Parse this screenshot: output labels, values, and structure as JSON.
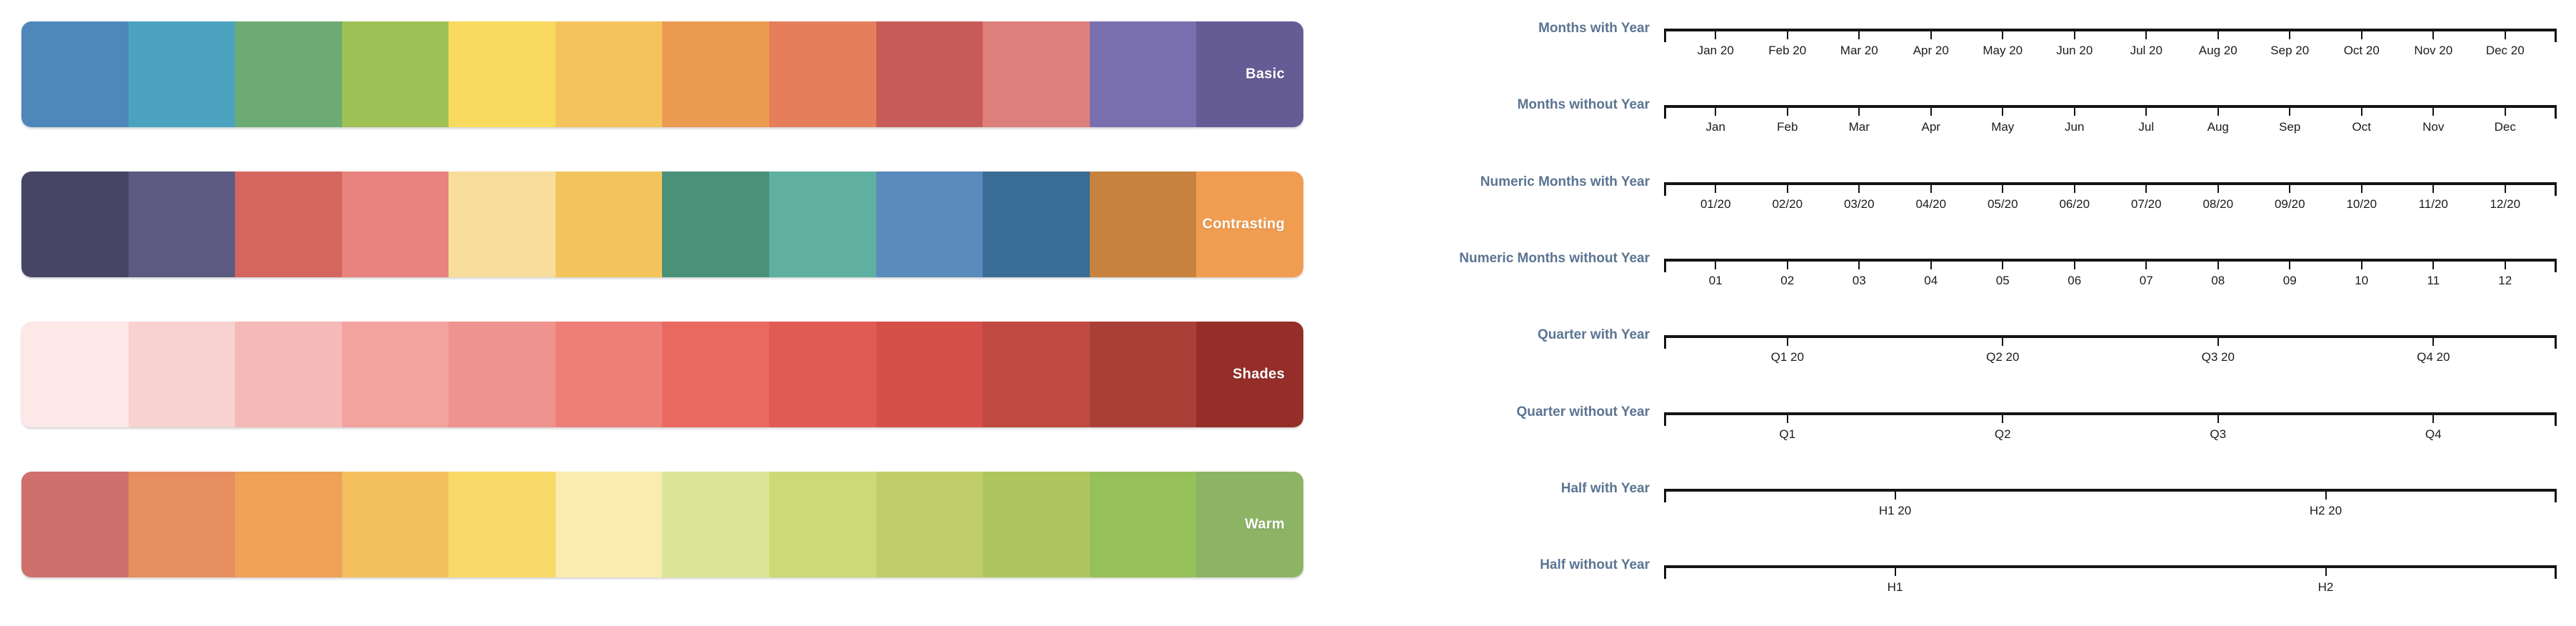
{
  "palettes": [
    {
      "name": "Basic",
      "colors": [
        "#4e87b9",
        "#4ba3c0",
        "#6cab73",
        "#a0c156",
        "#f8da5e",
        "#f5c35c",
        "#eb9c50",
        "#e67e5c",
        "#c65b58",
        "#dd807c",
        "#7a6fae",
        "#655c96"
      ]
    },
    {
      "name": "Contrasting",
      "colors": [
        "#474566",
        "#5c5a82",
        "#d5655f",
        "#e8837f",
        "#f8dd9c",
        "#f3c45c",
        "#4a9179",
        "#5fb0a0",
        "#5b8abc",
        "#3a6d96",
        "#c8823f",
        "#f09d51"
      ]
    },
    {
      "name": "Shades",
      "colors": [
        "#fce8e7",
        "#f7d2d0",
        "#f5bab7",
        "#f2a39f",
        "#ef938e",
        "#ed7f78",
        "#ea6a61",
        "#e05c53",
        "#d55049",
        "#c04a42",
        "#aa3f38",
        "#952e29"
      ]
    },
    {
      "name": "Warm",
      "colors": [
        "#cf706c",
        "#e68e5e",
        "#eea157",
        "#f4c05e",
        "#f9d968",
        "#f9ecae",
        "#dde698",
        "#cdd977",
        "#bfce69",
        "#adc75e",
        "#96c059",
        "#8cb464"
      ]
    }
  ],
  "timelines": [
    {
      "label": "Months with Year",
      "ticks": [
        "Jan 20",
        "Feb 20",
        "Mar 20",
        "Apr 20",
        "May 20",
        "Jun 20",
        "Jul 20",
        "Aug 20",
        "Sep 20",
        "Oct 20",
        "Nov 20",
        "Dec 20"
      ]
    },
    {
      "label": "Months without Year",
      "ticks": [
        "Jan",
        "Feb",
        "Mar",
        "Apr",
        "May",
        "Jun",
        "Jul",
        "Aug",
        "Sep",
        "Oct",
        "Nov",
        "Dec"
      ]
    },
    {
      "label": "Numeric Months with Year",
      "ticks": [
        "01/20",
        "02/20",
        "03/20",
        "04/20",
        "05/20",
        "06/20",
        "07/20",
        "08/20",
        "09/20",
        "10/20",
        "11/20",
        "12/20"
      ]
    },
    {
      "label": "Numeric Months without Year",
      "ticks": [
        "01",
        "02",
        "03",
        "04",
        "05",
        "06",
        "07",
        "08",
        "09",
        "10",
        "11",
        "12"
      ]
    },
    {
      "label": "Quarter with Year",
      "ticks": [
        "Q1 20",
        "Q2 20",
        "Q3 20",
        "Q4 20"
      ]
    },
    {
      "label": "Quarter without Year",
      "ticks": [
        "Q1",
        "Q2",
        "Q3",
        "Q4"
      ]
    },
    {
      "label": "Half with Year",
      "ticks": [
        "H1 20",
        "H2 20"
      ]
    },
    {
      "label": "Half without Year",
      "ticks": [
        "H1",
        "H2"
      ]
    }
  ],
  "colors": {
    "timeline_title": "#5b7492",
    "axis": "#141414",
    "tick_label": "#1b1b1b",
    "palette_label": "#ffffff"
  }
}
